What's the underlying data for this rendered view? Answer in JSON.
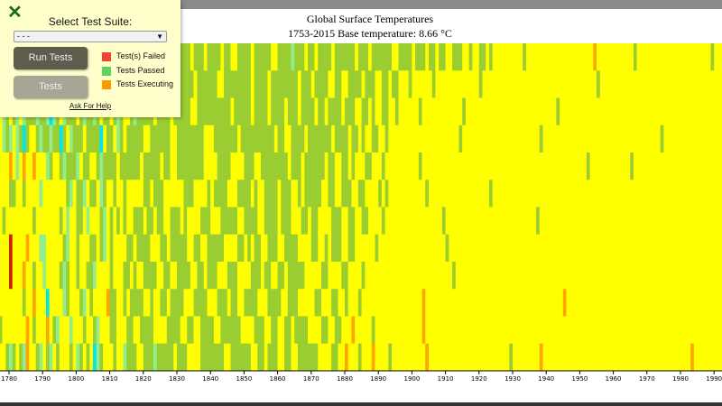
{
  "panel": {
    "close_icon": "x-icon",
    "select_label": "Select Test Suite:",
    "select_value": "- - -",
    "run_button": "Run Tests",
    "tests_button": "Tests",
    "legend": [
      {
        "label": "Test(s) Failed",
        "color": "#f44336"
      },
      {
        "label": "Tests Passed",
        "color": "#5fd35f"
      },
      {
        "label": "Tests Executing",
        "color": "#ff9800"
      }
    ],
    "help_link": "Ask For Help"
  },
  "chart_data": {
    "type": "heatmap",
    "title": "Global Surface Temperatures",
    "subtitle": "1753-2015 Base temperature: 8.66 °C",
    "x_start_year": 1753,
    "x_end_year": 2015,
    "x_ticks": [
      "1780",
      "1790",
      "1800",
      "1810",
      "1820",
      "1830",
      "1840",
      "1850",
      "1860",
      "1870",
      "1880",
      "1890",
      "1900",
      "1910",
      "1920",
      "1930",
      "1940",
      "1950",
      "1960",
      "1970",
      "1980",
      "1990"
    ],
    "color_bins": {
      "c": "#00e5ee",
      "l": "#90ee90",
      "g": "#9acd32",
      "y": "#ffff00",
      "o": "#ffa500",
      "r": "#ff4500",
      "d": "#cc2200"
    },
    "cells_by_month": [
      "yyogyyyglyyoyygyyyogyygyylyggllgcgyllgggclgygllgyglyggcllgyglgggylcgggyglgyglggggygggyggggyggyyggggygggggyygggglgggyggyggggyggggggygggyggggggyyggggygggyggyggyygggyygyyggygyyyyyyyyygyyyyyyyyyyyyyyyyyyyyoyyyyyyyyyyygyyyyyyyyyyyyyyyyyyyyyygyyyyyyyyyyyyyyyyyyyyyyyyyyy",
      "ygyyoyglyygyyyogyylyyygyogylgcglygllggcgglygcglgglyglggyglgcgyglggyggylggggyggggggyggggggyyggggggggyggggyggggggggygggyggggyyggyyggggygggyyggyggyyygyyyyyygyyyyyyyyyyyyygyyyyyyyyyyyyyyyyyyyyyyyyyyyyyyyyyygyyyyyyyyyyyyyyyyyyyyyyyyyyyyyyyyyyyyyyyyyyyyyyyyyyyyy",
      "yygyyyoylyygyyyygyoyyygyylgyglylggglgglclgylgggyglgglgyggyglgyyglgggggyggggygggggyyggggggggggygggggyggggyggggygggyggggyggyggggygggyyggygyyggyygyyyyyygyyyyyyyyyyyygyyyyyyyyyyyyyyyyyyyyyyyyyyygyyyyyyyyyyyyyyyyyyyyyyyyyyyyyyyyyyyyyyyyyyyyyyyyyyyyyyyyyyyyyy",
      "yyyyoygyyyglyyyygyyoygyyylglylgcgyyglgglggcgylgggyggggcyggylgygggggyyggggggyyggggggggyyygggggggyggggggggggyggyyggggygggggggyggggyggygyyggyygyyyyyyyyyyyyyyyyyyyyygyyyyyyyyyyyyyyyyyyyyyyygyyyyyyyyyyyyyyyyyyyyyyyyyyyyyyyyyyygyyyyyyyyyyyyyyyyyyyyyyyyyyyyyyyyyyyy",
      "yyyoyyyyoyyyyygyyoyyyogyyyyoylyoyyoyyylgyyglggglyggyyglggggyggggggygggggyggyyggggggggyyyyggggyyyygggyyggggggggygggyggggggyggyyggygyyyggyyygyyyyyyyyyygyyyyyyyyyyyyyyyyyyyyyyyyyyyyyyyyyyyyyyyyyyyyyyyyygyyyyyyyyyyyygyyyyyyyyyyyyyyyyyyyyyyyyyyyyyyyyyyyyyyyyyyyyyy",
      "ygyyyyyoyyyyyroyygyyyoyyyyyggyygyyyylyyyyyyyglygglyggylgyygyygyyyyyggygggyyyyyygggyyyygyggggyyyggggygyyggggygggyygygggggyyggyygggyyggyyyygygyyyyyyyyyyygyyyyyyyyyyyyyyyyyygyyyyyyyyyyyyyyyyyyyyyyyyyyyyyyyyyyyyyyyyyyyyyyyyyyyyyyyyyyyyyyyyyyyyyyyyyyyyyyyyyyyyy",
      "yyygyyyyoyyyyryyoyygyyyyygyyyyyyyygyyyyyyygylyyggylyyyglygygygyygggyggyggyygggygyyyygggyyygggggyyggggyyggggygggyyyggyggyyyygggyyggyyggyyyygyyyyyyyyyyyyyyyyygyyyyyyyyyyyyyyyyyyyyyyyyyyygyyyyyyyyyyyyyyyyyyyyyyyyyyyyyyyyyyyyyyyyyyyyyyyyyyyyyyyyyyyyyyyyyyyyyyy",
      "ygyyyyyyyyyyyyoyyyygoyyyyyydyyyyoyyyllyyyyyglyygyyyggyglygyyyyggyggggyyyggygggggyyggyygggggyyyyggygyggyygggyyggggyyyyggyygygggyyggyyyyyygyyyyyyyyyyyyyyyyyyyygyyyyyyyyyyyyyyyyyyyyyyyyyyyyyyyyyyyyyyyyyyyyyyyyyyyyyyyyyyyyyyyyyyyyyyyyyyyyyyyyyyyyyyyyyyyyyyyyyy",
      "yyyyoyyyyyyyydyyyyyyyyoyyyydyyyoyygyylyyyyglgyygyygglyyyygyyyggygyyggggyyggyyggggyyggygggyyygggyyyygggyggyyggygggggyyyyyggyyyyggyyyygyyyyyyyyyyyyyyyyyyyyyyyyyygyyyyyyyyyyyyyyyyyyyyyyyyyyyyyyyyyyyyyyyyyyyyyyyyyyyyyyyyyyyyyyyyyyyyyyyyyyyyyyyyyyyyyyyyyyyyyyy",
      "yyyyyoyygyyyyyyoyyyyyyyyyyyyyyygyyoyyycyyyylgyyyglygyyyyoggyygyggggyygyyggyggggyyyggggyyygggyggyyggggyyyggggyygggyyyyyggyyyggyygyyygyyyyyyyyyyyyyyyyyyoyyyyyyyyyyyyyyyyyyyyyyyyyyyyyyyyyyyyyyyyyoyyyyyyyyyyyyyyyyyyyyyyyyyyyyyyyyyyyyyyyyyyyyyyyyyyyoyyyyyyyyyyoyy",
      "yyyyoyyyyyyyoyyyygyyyryygyyyyyyyoygyyyoyglyyylyyygyyglyyyggyyyggyyggggyyyyggggyyggyyggggyyggggggyyyygggyyggyyggyggggyyyyggyyggyyyoyyyyygyyyyyyyyyyyyyyoyyyyyyyyyyyyyyyyyyyyyyyyyyyyyyyyyyyyyyyyyyyyyyyyyyyyyyyyyyyyyyyyyyyyyyyyyyyyyyyyyyyyyyyyyyyyyyyyoyyyyyy",
      "yyyyyyyygyyyyygoyyyyoyyyyyglgygloyyglyglygyyygylgygyclgyyygyylgggyyggglgggggygggyyyygggggggyyggggggyyggygggyyggyyggggggyyyyggyyoyyygyyyoyyyygyyyyyyyyyyoyyyyyyyyyyyyyyyyyyyyyyyygyyyyyyyyoyyyyyyyyyyyyyyyyyyyyyyyyyyyyyyyyyyyyyyyyyyyyoyyyyyyyyyyyyyyyyyyyyyyyyyy"
    ]
  }
}
